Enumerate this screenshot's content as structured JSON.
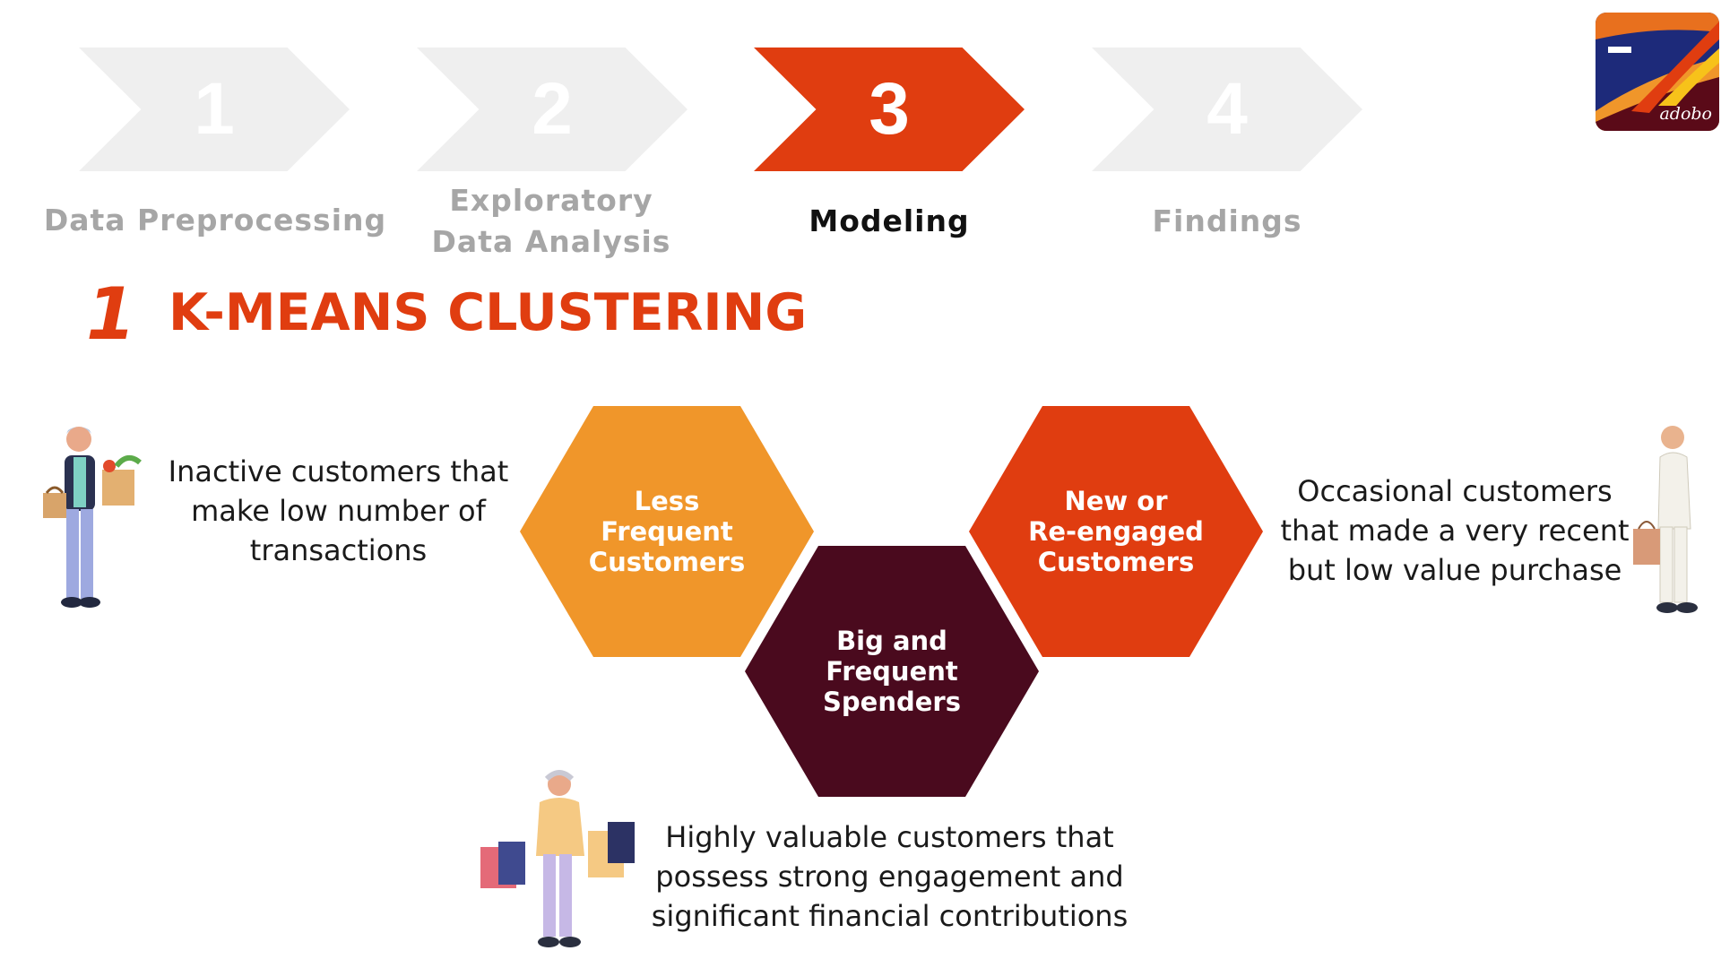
{
  "steps": [
    {
      "number": "1",
      "label": "Data Preprocessing",
      "active": false
    },
    {
      "number": "2",
      "label": "Exploratory\nData Analysis",
      "active": false
    },
    {
      "number": "3",
      "label": "Modeling",
      "active": true
    },
    {
      "number": "4",
      "label": "Findings",
      "active": false
    }
  ],
  "logo": {
    "text": "adobo"
  },
  "section": {
    "number": "1",
    "title": "K-MEANS CLUSTERING"
  },
  "clusters": [
    {
      "label": "Less Frequent\nCustomers",
      "color": "#f0962a"
    },
    {
      "label": "Big and\nFrequent\nSpenders",
      "color": "#4a0a1e"
    },
    {
      "label": "New or\nRe-engaged\nCustomers",
      "color": "#e03d10"
    }
  ],
  "descriptions": {
    "less_frequent": "Inactive customers that\nmake low number of\ntransactions",
    "new_reengaged": "Occasional customers\nthat made a very recent\nbut low value purchase",
    "big_frequent": "Highly valuable customers that\npossess strong engagement and\nsignificant financial contributions"
  },
  "colors": {
    "accent": "#e03d10",
    "inactive_step": "#efefef",
    "muted_text": "#a6a6a6"
  }
}
